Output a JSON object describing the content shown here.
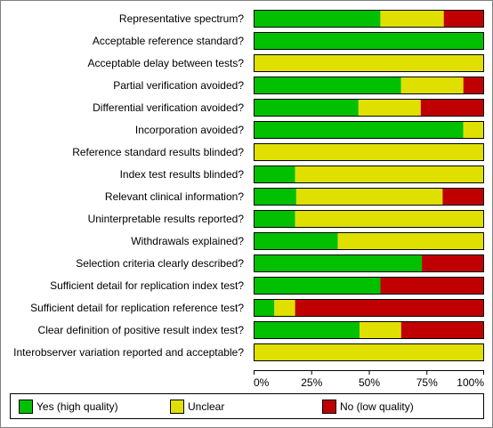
{
  "chart_data": {
    "type": "bar",
    "stacked": true,
    "orientation": "horizontal",
    "categories": [
      "Representative spectrum?",
      "Acceptable reference standard?",
      "Acceptable delay between tests?",
      "Partial verification avoided?",
      "Differential verification avoided?",
      "Incorporation avoided?",
      "Reference standard results blinded?",
      "Index test results blinded?",
      "Relevant clinical information?",
      "Uninterpretable results reported?",
      "Withdrawals explained?",
      "Selection criteria clearly described?",
      "Sufficient detail for replication index test?",
      "Sufficient detail for replication reference test?",
      "Clear definition of positive result index test?",
      "Interobserver variation reported and acceptable?"
    ],
    "series": [
      {
        "name": "Yes (high quality)",
        "color": "#00c000",
        "values": [
          55,
          100,
          0,
          64,
          45.5,
          91,
          0,
          18,
          18.5,
          18,
          36.5,
          73,
          55,
          9,
          46,
          0
        ]
      },
      {
        "name": "Unclear",
        "color": "#e0e000",
        "values": [
          27.5,
          0,
          100,
          27,
          27,
          9,
          100,
          82,
          63.5,
          82,
          63.5,
          0,
          0,
          9,
          18,
          100
        ]
      },
      {
        "name": "No (low quality)",
        "color": "#c00000",
        "values": [
          17.5,
          0,
          0,
          9,
          27.5,
          0,
          0,
          0,
          18,
          0,
          0,
          27,
          45,
          82,
          36,
          0
        ]
      }
    ],
    "xticks": [
      "0%",
      "25%",
      "50%",
      "75%",
      "100%"
    ],
    "xlim": [
      0,
      100
    ],
    "legend_position": "bottom"
  }
}
